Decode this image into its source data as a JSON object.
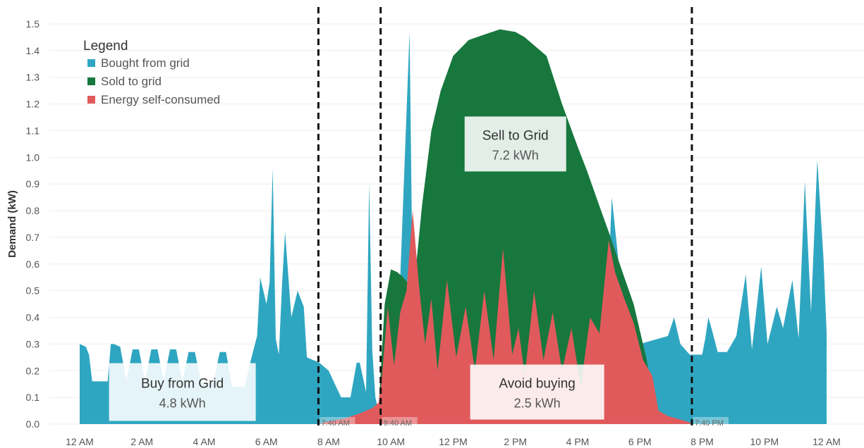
{
  "chart_data": {
    "type": "area",
    "ylabel": "Demand (kW)",
    "ylim": [
      0,
      1.5
    ],
    "yticks": [
      "0.0",
      "0.1",
      "0.2",
      "0.3",
      "0.4",
      "0.5",
      "0.6",
      "0.7",
      "0.8",
      "0.9",
      "1.0",
      "1.1",
      "1.2",
      "1.3",
      "1.4",
      "1.5"
    ],
    "xticks": [
      "12 AM",
      "2 AM",
      "4 AM",
      "6 AM",
      "8 AM",
      "10 AM",
      "12 PM",
      "2 PM",
      "4 PM",
      "6 PM",
      "8 PM",
      "10 PM",
      "12 AM"
    ],
    "x_unit": "hours since midnight",
    "grid": "horizontal",
    "legend": {
      "title": "Legend",
      "placement": "top-left",
      "entries": [
        {
          "label": "Bought from grid",
          "color": "#2fa6c1"
        },
        {
          "label": "Sold to grid",
          "color": "#17773d"
        },
        {
          "label": "Energy self-consumed",
          "color": "#e05a5c"
        }
      ]
    },
    "series": [
      {
        "name": "Bought from grid",
        "color": "#2fa6c1",
        "x": [
          0.0,
          0.2,
          0.3,
          0.4,
          0.7,
          0.9,
          1.0,
          1.1,
          1.3,
          1.5,
          1.7,
          1.9,
          2.1,
          2.3,
          2.5,
          2.7,
          2.9,
          3.1,
          3.3,
          3.5,
          3.7,
          3.9,
          4.1,
          4.3,
          4.5,
          4.7,
          4.9,
          5.1,
          5.3,
          5.5,
          5.7,
          5.8,
          6.0,
          6.1,
          6.2,
          6.3,
          6.4,
          6.5,
          6.6,
          6.8,
          7.0,
          7.2,
          7.3,
          7.5,
          7.7,
          7.8,
          8.0,
          8.2,
          8.4,
          8.6,
          8.7,
          8.9,
          9.0,
          9.2,
          9.3,
          9.4,
          9.5,
          9.6,
          10.3,
          10.6,
          10.7,
          10.9,
          11.1,
          11.3,
          11.5,
          11.8,
          13.0,
          15.0,
          16.0,
          16.8,
          17.1,
          17.5,
          18.0,
          18.6,
          18.9,
          19.1,
          19.3,
          19.6,
          19.8,
          20.0,
          20.1,
          20.2,
          20.3,
          20.5,
          20.8,
          21.1,
          21.4,
          21.6,
          21.9,
          22.1,
          22.4,
          22.6,
          22.9,
          23.1,
          23.3,
          23.5,
          23.7,
          23.9,
          24.0
        ],
        "values": [
          0.3,
          0.29,
          0.26,
          0.16,
          0.16,
          0.16,
          0.3,
          0.3,
          0.29,
          0.16,
          0.28,
          0.28,
          0.16,
          0.28,
          0.28,
          0.16,
          0.28,
          0.28,
          0.16,
          0.27,
          0.27,
          0.16,
          0.15,
          0.16,
          0.27,
          0.27,
          0.14,
          0.14,
          0.14,
          0.24,
          0.33,
          0.55,
          0.45,
          0.53,
          0.96,
          0.32,
          0.26,
          0.52,
          0.72,
          0.4,
          0.5,
          0.44,
          0.25,
          0.24,
          0.23,
          0.22,
          0.2,
          0.15,
          0.1,
          0.1,
          0.1,
          0.23,
          0.23,
          0.12,
          0.9,
          0.28,
          0.1,
          0.05,
          0.55,
          1.47,
          0.5,
          0.1,
          0.05,
          0.03,
          0.02,
          0.02,
          0.0,
          0.0,
          0.0,
          0.05,
          0.85,
          0.4,
          0.3,
          0.32,
          0.33,
          0.4,
          0.3,
          0.26,
          0.26,
          0.26,
          0.32,
          0.4,
          0.36,
          0.27,
          0.27,
          0.33,
          0.56,
          0.28,
          0.59,
          0.3,
          0.44,
          0.36,
          0.54,
          0.32,
          0.91,
          0.42,
          0.99,
          0.62,
          0.34
        ]
      },
      {
        "name": "Sold to grid",
        "color": "#17773d",
        "x": [
          9.6,
          9.8,
          10.0,
          10.2,
          10.4,
          10.6,
          10.8,
          11.0,
          11.3,
          11.6,
          12.0,
          12.5,
          13.0,
          13.5,
          14.0,
          14.3,
          14.6,
          15.0,
          15.5,
          16.0,
          16.3,
          16.6,
          17.0,
          17.5,
          17.8,
          18.2,
          18.6
        ],
        "values": [
          0.05,
          0.45,
          0.58,
          0.57,
          0.55,
          0.52,
          0.58,
          0.82,
          1.1,
          1.25,
          1.38,
          1.44,
          1.46,
          1.48,
          1.47,
          1.45,
          1.42,
          1.38,
          1.2,
          1.04,
          0.95,
          0.85,
          0.72,
          0.55,
          0.45,
          0.25,
          0.0
        ]
      },
      {
        "name": "Energy self-consumed",
        "color": "#e05a5c",
        "x": [
          7.7,
          8.0,
          8.5,
          9.0,
          9.4,
          9.6,
          9.7,
          9.9,
          10.1,
          10.3,
          10.5,
          10.7,
          10.9,
          11.1,
          11.3,
          11.5,
          11.8,
          12.1,
          12.4,
          12.7,
          13.0,
          13.3,
          13.6,
          13.9,
          14.1,
          14.3,
          14.6,
          14.9,
          15.2,
          15.5,
          15.8,
          16.1,
          16.4,
          16.7,
          17.0,
          17.2,
          17.5,
          17.8,
          18.1,
          18.4,
          18.6,
          18.9,
          19.2,
          19.5,
          19.7
        ],
        "values": [
          0.0,
          0.01,
          0.02,
          0.04,
          0.06,
          0.08,
          0.16,
          0.44,
          0.22,
          0.42,
          0.5,
          0.8,
          0.52,
          0.3,
          0.47,
          0.2,
          0.54,
          0.25,
          0.44,
          0.2,
          0.5,
          0.24,
          0.66,
          0.26,
          0.36,
          0.18,
          0.5,
          0.24,
          0.42,
          0.2,
          0.36,
          0.14,
          0.4,
          0.34,
          0.69,
          0.57,
          0.47,
          0.38,
          0.24,
          0.18,
          0.05,
          0.03,
          0.02,
          0.01,
          0.0
        ]
      }
    ],
    "reference_lines": [
      {
        "x": 7.67,
        "label": "7:40 AM"
      },
      {
        "x": 9.67,
        "label": "9:40 AM"
      },
      {
        "x": 19.67,
        "label": "7:40 PM"
      }
    ],
    "annotations": [
      {
        "title": "Buy from Grid",
        "value": "4.8 kWh",
        "x_center": 3.3,
        "y_center": 0.12
      },
      {
        "title": "Sell to Grid",
        "value": "7.2 kWh",
        "x_center": 14.0,
        "y_center": 1.05
      },
      {
        "title": "Avoid buying",
        "value": "2.5 kWh",
        "x_center": 14.7,
        "y_center": 0.12
      }
    ]
  }
}
